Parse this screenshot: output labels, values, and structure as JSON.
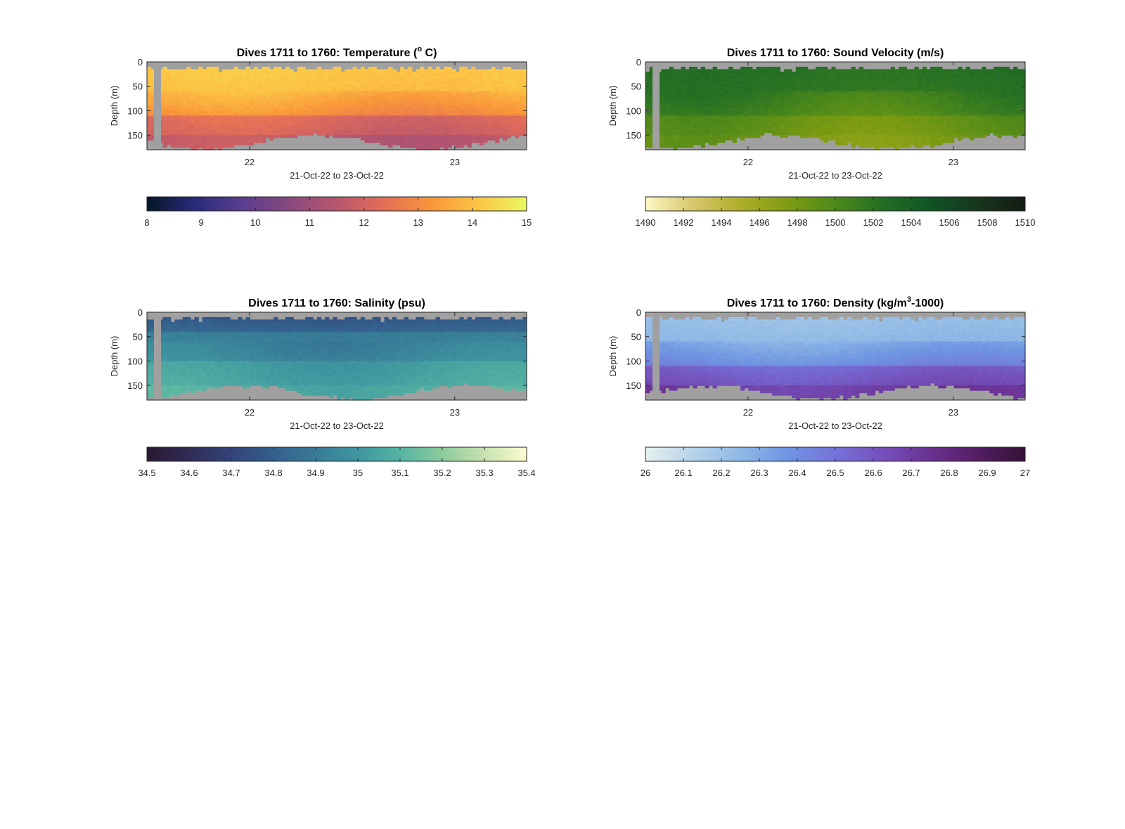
{
  "chart_data": [
    {
      "type": "heatmap",
      "title": "Dives 1711 to 1760: Temperature (° C)",
      "title_parts": {
        "pre": "Dives 1711 to 1760: Temperature (",
        "sup": "o",
        "post": " C)"
      },
      "xlabel": "21-Oct-22 to 23-Oct-22",
      "ylabel": "Depth (m)",
      "x_ticks": [
        "22",
        "23"
      ],
      "x_tick_values": [
        22,
        23
      ],
      "xlim": [
        21.5,
        23.35
      ],
      "y_ticks": [
        "0",
        "50",
        "100",
        "150"
      ],
      "y_tick_values": [
        0,
        50,
        100,
        150
      ],
      "ylim": [
        180,
        0
      ],
      "depth_layers": [
        {
          "depth_top": 0,
          "depth_bottom": 60,
          "value": 14.2
        },
        {
          "depth_top": 60,
          "depth_bottom": 110,
          "value": 13.8
        },
        {
          "depth_top": 110,
          "depth_bottom": 150,
          "value": 12.3
        },
        {
          "depth_top": 150,
          "depth_bottom": 180,
          "value": 11.6
        }
      ],
      "colorbar": {
        "ticks": [
          "8",
          "9",
          "10",
          "11",
          "12",
          "13",
          "14",
          "15"
        ],
        "range": [
          8,
          15
        ],
        "colors": [
          "#041626",
          "#282a7a",
          "#5b3d8f",
          "#88497f",
          "#b8566e",
          "#e36e58",
          "#f9963a",
          "#fcc645",
          "#e8f960"
        ]
      },
      "seabed_color": "#a0a0a0",
      "missing_color": "#a0a0a0"
    },
    {
      "type": "heatmap",
      "title": "Dives 1711 to 1760: Sound Velocity (m/s)",
      "xlabel": "21-Oct-22 to 23-Oct-22",
      "ylabel": "Depth (m)",
      "x_ticks": [
        "22",
        "23"
      ],
      "x_tick_values": [
        22,
        23
      ],
      "xlim": [
        21.5,
        23.35
      ],
      "y_ticks": [
        "0",
        "50",
        "100",
        "150"
      ],
      "y_tick_values": [
        0,
        50,
        100,
        150
      ],
      "ylim": [
        180,
        0
      ],
      "depth_layers": [
        {
          "depth_top": 0,
          "depth_bottom": 60,
          "value": 1502.5
        },
        {
          "depth_top": 60,
          "depth_bottom": 110,
          "value": 1501.5
        },
        {
          "depth_top": 110,
          "depth_bottom": 150,
          "value": 1499.0
        },
        {
          "depth_top": 150,
          "depth_bottom": 180,
          "value": 1498.0
        }
      ],
      "colorbar": {
        "ticks": [
          "1490",
          "1492",
          "1494",
          "1496",
          "1498",
          "1500",
          "1502",
          "1504",
          "1506",
          "1508",
          "1510"
        ],
        "range": [
          1490,
          1510
        ],
        "colors": [
          "#fdf7c4",
          "#d8c76c",
          "#aeae2a",
          "#7e9c12",
          "#4e891a",
          "#236f24",
          "#0f5425",
          "#17361e",
          "#131c13"
        ]
      },
      "seabed_color": "#a0a0a0",
      "missing_color": "#a0a0a0"
    },
    {
      "type": "heatmap",
      "title": "Dives 1711 to 1760: Salinity (psu)",
      "xlabel": "21-Oct-22 to 23-Oct-22",
      "ylabel": "Depth (m)",
      "x_ticks": [
        "22",
        "23"
      ],
      "x_tick_values": [
        22,
        23
      ],
      "xlim": [
        21.5,
        23.35
      ],
      "y_ticks": [
        "0",
        "50",
        "100",
        "150"
      ],
      "y_tick_values": [
        0,
        50,
        100,
        150
      ],
      "ylim": [
        180,
        0
      ],
      "depth_layers": [
        {
          "depth_top": 0,
          "depth_bottom": 40,
          "value": 34.75
        },
        {
          "depth_top": 40,
          "depth_bottom": 100,
          "value": 34.9
        },
        {
          "depth_top": 100,
          "depth_bottom": 150,
          "value": 35.02
        },
        {
          "depth_top": 150,
          "depth_bottom": 180,
          "value": 35.08
        }
      ],
      "colorbar": {
        "ticks": [
          "34.5",
          "34.6",
          "34.7",
          "34.8",
          "34.9",
          "35",
          "35.1",
          "35.2",
          "35.3",
          "35.4"
        ],
        "range": [
          34.5,
          35.4
        ],
        "colors": [
          "#2a1832",
          "#302c55",
          "#324479",
          "#345f8d",
          "#387b97",
          "#3f96a0",
          "#55b3a2",
          "#8bcb9c",
          "#c8e2b0",
          "#fdfbd1"
        ]
      },
      "seabed_color": "#a0a0a0",
      "missing_color": "#a0a0a0"
    },
    {
      "type": "heatmap",
      "title": "Dives 1711 to 1760: Density (kg/m³-1000)",
      "title_parts": {
        "pre": "Dives 1711 to 1760: Density (kg/m",
        "sup": "3",
        "post": "-1000)"
      },
      "xlabel": "21-Oct-22 to 23-Oct-22",
      "ylabel": "Depth (m)",
      "x_ticks": [
        "22",
        "23"
      ],
      "x_tick_values": [
        22,
        23
      ],
      "xlim": [
        21.5,
        23.35
      ],
      "y_ticks": [
        "0",
        "50",
        "100",
        "150"
      ],
      "y_tick_values": [
        0,
        50,
        100,
        150
      ],
      "ylim": [
        180,
        0
      ],
      "depth_layers": [
        {
          "depth_top": 0,
          "depth_bottom": 60,
          "value": 26.2
        },
        {
          "depth_top": 60,
          "depth_bottom": 110,
          "value": 26.3
        },
        {
          "depth_top": 110,
          "depth_bottom": 150,
          "value": 26.55
        },
        {
          "depth_top": 150,
          "depth_bottom": 180,
          "value": 26.7
        }
      ],
      "colorbar": {
        "ticks": [
          "26",
          "26.1",
          "26.2",
          "26.3",
          "26.4",
          "26.5",
          "26.6",
          "26.7",
          "26.8",
          "26.9",
          "27"
        ],
        "range": [
          26,
          27
        ],
        "colors": [
          "#e6f1f1",
          "#b5d3ea",
          "#8fb8e6",
          "#6f95e2",
          "#7572d8",
          "#7550bb",
          "#6b3192",
          "#531d63",
          "#341236"
        ]
      },
      "seabed_color": "#a0a0a0",
      "missing_color": "#a0a0a0"
    }
  ]
}
